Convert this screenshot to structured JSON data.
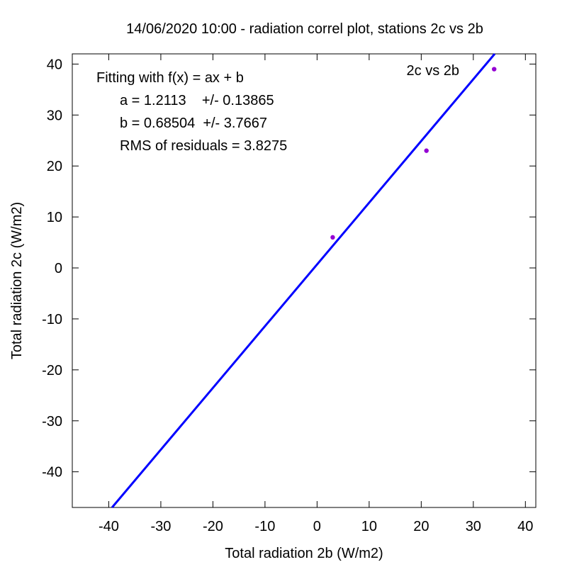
{
  "chart_data": {
    "type": "scatter",
    "title": "14/06/2020 10:00 - radiation correl plot, stations 2c vs 2b",
    "xlabel": "Total radiation 2b (W/m2)",
    "ylabel": "Total radiation 2c (W/m2)",
    "xlim": [
      -47,
      42
    ],
    "ylim": [
      -47,
      42
    ],
    "xticks": [
      -40,
      -30,
      -20,
      -10,
      0,
      10,
      20,
      30,
      40
    ],
    "yticks": [
      -40,
      -30,
      -20,
      -10,
      0,
      10,
      20,
      30,
      40
    ],
    "grid": false,
    "legend_position": "top-right",
    "series": [
      {
        "name": "2c vs 2b",
        "color": "#9400d3",
        "points": [
          {
            "x": 3,
            "y": 6
          },
          {
            "x": 21,
            "y": 23
          },
          {
            "x": 34,
            "y": 39
          }
        ]
      }
    ],
    "fit": {
      "type": "line",
      "slope": 1.2113,
      "intercept": 0.68504,
      "color": "#0000ff"
    },
    "annotations": [
      "Fitting with f(x) = ax + b",
      "a = 1.2113    +/- 0.13865",
      "b = 0.68504  +/- 3.7667",
      "RMS of residuals = 3.8275"
    ]
  }
}
